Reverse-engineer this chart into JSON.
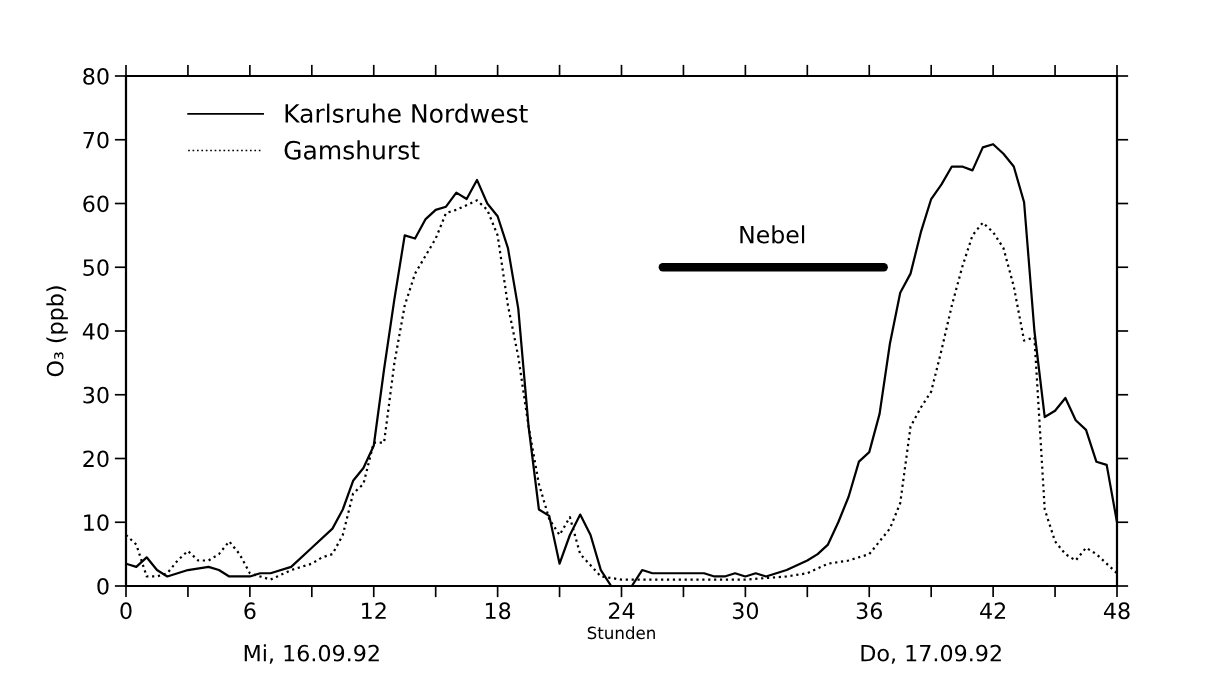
{
  "chart_data": {
    "type": "line",
    "ylabel": "O₃ (ppb)",
    "xlabel": "Stunden",
    "xlim": [
      0,
      48
    ],
    "ylim": [
      0,
      80
    ],
    "xticks": [
      0,
      {
        "value": 3,
        "label": null
      },
      6,
      {
        "value": 9,
        "label": null
      },
      12,
      {
        "value": 15,
        "label": null
      },
      18,
      {
        "value": 21,
        "label": null
      },
      24,
      {
        "value": 27,
        "label": null
      },
      30,
      {
        "value": 33,
        "label": null
      },
      36,
      {
        "value": 39,
        "label": null
      },
      42,
      {
        "value": 45,
        "label": null
      },
      48
    ],
    "yticks": [
      0,
      10,
      20,
      30,
      40,
      50,
      60,
      70,
      80
    ],
    "grid": false,
    "legend": "top left",
    "marker": "none",
    "annotations": [
      {
        "text": "Nebel",
        "x": 31.3,
        "y": 50
      },
      "Mi, 16.09.92",
      "Do, 17.09.92"
    ],
    "series": [
      {
        "name": "Karlsruhe Nordwest",
        "color": "#000000",
        "line_style": "solid",
        "x": [
          0,
          0.5,
          1,
          1.5,
          2,
          3,
          4,
          4.5,
          5,
          6,
          6.5,
          7,
          8,
          9,
          10,
          10.5,
          11,
          11.5,
          12,
          12.5,
          13,
          13.5,
          14,
          14.5,
          15,
          15.5,
          16,
          16.5,
          17,
          17.5,
          18,
          18.5,
          19,
          19.5,
          20,
          20.5,
          21,
          21.5,
          22,
          22.5,
          23,
          23.5,
          24.5,
          25,
          25.5,
          27,
          28,
          28.5,
          29,
          29.5,
          30,
          30.5,
          31,
          32,
          33,
          33.5,
          34,
          34.5,
          35,
          35.5,
          36,
          36.5,
          37,
          37.5,
          38,
          38.5,
          39,
          39.5,
          40,
          40.5,
          41,
          41.5,
          42,
          42.5,
          43,
          43.5,
          44,
          44.5,
          45,
          45.5,
          46,
          46.5,
          47,
          47.5,
          48
        ],
        "values": [
          3.5,
          3,
          4.5,
          2.5,
          1.5,
          2.5,
          3,
          2.5,
          1.5,
          1.5,
          2,
          2,
          3,
          6,
          9,
          12,
          16.5,
          18.5,
          22,
          34,
          45,
          55,
          54.5,
          57.5,
          59,
          59.5,
          61.7,
          60.7,
          63.7,
          60,
          58,
          53,
          43.5,
          25,
          12,
          11,
          3.5,
          8,
          11.2,
          8,
          2.5,
          0,
          0,
          2.5,
          2,
          2,
          2,
          1.5,
          1.5,
          2,
          1.5,
          2,
          1.5,
          2.5,
          4,
          5,
          6.5,
          10,
          14,
          19.5,
          21,
          27,
          38,
          46,
          49,
          55.5,
          60.7,
          63,
          65.8,
          65.8,
          65.2,
          68.8,
          69.3,
          67.8,
          65.8,
          60.2,
          40,
          26.5,
          27.5,
          29.5,
          26,
          24.5,
          19.5,
          19,
          10
        ]
      },
      {
        "name": "Gamshurst",
        "color": "#000000",
        "line_style": "dotted",
        "x": [
          0,
          0.5,
          1,
          1.5,
          2,
          2.5,
          3,
          3.5,
          4,
          4.5,
          5,
          5.5,
          6,
          6.5,
          7,
          8,
          9,
          9.5,
          10,
          10.5,
          11,
          11.5,
          12,
          12.5,
          13,
          13.5,
          14,
          15,
          15.5,
          16,
          17,
          17.5,
          18,
          18.5,
          19,
          19.5,
          20,
          20.5,
          21,
          21.5,
          22,
          23,
          24,
          30,
          32,
          33,
          34,
          35,
          36,
          37,
          37.5,
          38,
          38.5,
          39,
          39.5,
          40,
          40.5,
          41,
          41.5,
          42,
          42.5,
          43,
          43.5,
          44,
          44.5,
          45,
          45.5,
          46,
          46.5,
          47,
          48
        ],
        "values": [
          8,
          6.5,
          1.5,
          1.5,
          2,
          4,
          5.5,
          4,
          4,
          5,
          7,
          5,
          2,
          1.5,
          1,
          2.5,
          3.5,
          4.5,
          5,
          8,
          14.5,
          16,
          22.5,
          22.5,
          35,
          44,
          49,
          54.5,
          58.5,
          59,
          60.5,
          59,
          55,
          44,
          36,
          25,
          16,
          10.5,
          8,
          10.8,
          5,
          1.5,
          1,
          1,
          1.5,
          2,
          3.5,
          4,
          5,
          9,
          13,
          25,
          28,
          30.5,
          37,
          44,
          50,
          55,
          57,
          55.5,
          53,
          47,
          38.5,
          39,
          12,
          7,
          5,
          4,
          6,
          5,
          2
        ]
      },
      {
        "color": "#000000",
        "line_style": "solid",
        "x": [
          26,
          36.7
        ],
        "values": [
          50,
          50
        ]
      }
    ]
  }
}
